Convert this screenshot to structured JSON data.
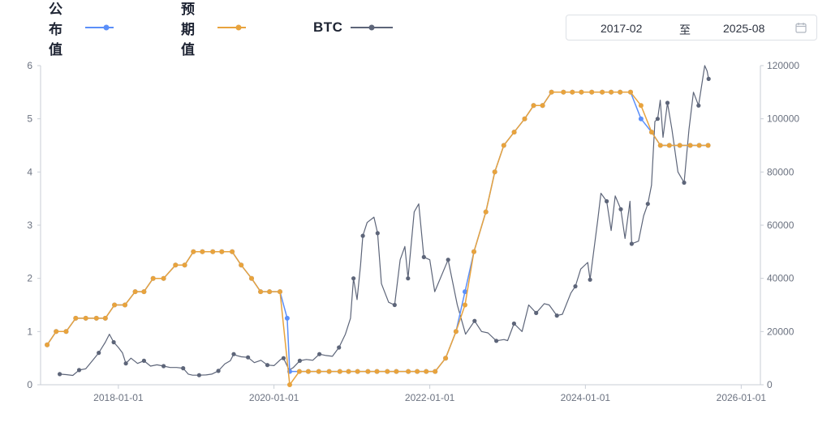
{
  "legend": {
    "published": {
      "label": "公布值",
      "color": "#5b8ff9"
    },
    "expected": {
      "label": "预期值",
      "color": "#e8a33d"
    },
    "btc": {
      "label": "BTC",
      "color": "#5d6579"
    }
  },
  "range": {
    "start": "2017-02",
    "separator": "至",
    "end": "2025-08",
    "icon": "calendar-icon"
  },
  "chart_data": {
    "type": "line",
    "x_axis": {
      "ticks": [
        "2018-01-01",
        "2020-01-01",
        "2022-01-01",
        "2024-01-01",
        "2026-01-01"
      ],
      "range": [
        "2017-01-01",
        "2026-04-01"
      ]
    },
    "y_left": {
      "ticks": [
        "0",
        "1",
        "2",
        "3",
        "4",
        "5",
        "6"
      ],
      "range": [
        0,
        6
      ]
    },
    "y_right": {
      "ticks": [
        "0",
        "20000",
        "40000",
        "60000",
        "80000",
        "100000",
        "120000"
      ],
      "range": [
        0,
        120000
      ]
    },
    "grid": false,
    "legend_position": "top-left",
    "series": [
      {
        "name": "公布值",
        "axis": "left",
        "points": [
          [
            "2017-02-01",
            0.75
          ],
          [
            "2017-03-15",
            1.0
          ],
          [
            "2017-05-01",
            1.0
          ],
          [
            "2017-06-15",
            1.25
          ],
          [
            "2017-08-01",
            1.25
          ],
          [
            "2017-09-20",
            1.25
          ],
          [
            "2017-11-01",
            1.25
          ],
          [
            "2017-12-14",
            1.5
          ],
          [
            "2018-02-01",
            1.5
          ],
          [
            "2018-03-21",
            1.75
          ],
          [
            "2018-05-01",
            1.75
          ],
          [
            "2018-06-13",
            2.0
          ],
          [
            "2018-08-01",
            2.0
          ],
          [
            "2018-09-26",
            2.25
          ],
          [
            "2018-11-08",
            2.25
          ],
          [
            "2018-12-19",
            2.5
          ],
          [
            "2019-01-30",
            2.5
          ],
          [
            "2019-03-20",
            2.5
          ],
          [
            "2019-05-01",
            2.5
          ],
          [
            "2019-06-19",
            2.5
          ],
          [
            "2019-07-31",
            2.25
          ],
          [
            "2019-09-18",
            2.0
          ],
          [
            "2019-10-30",
            1.75
          ],
          [
            "2019-12-11",
            1.75
          ],
          [
            "2020-01-29",
            1.75
          ],
          [
            "2020-03-03",
            1.25
          ],
          [
            "2020-03-15",
            0.25
          ],
          [
            "2020-04-29",
            0.25
          ],
          [
            "2020-06-10",
            0.25
          ],
          [
            "2020-07-29",
            0.25
          ],
          [
            "2020-09-16",
            0.25
          ],
          [
            "2020-11-05",
            0.25
          ],
          [
            "2020-12-16",
            0.25
          ],
          [
            "2021-01-27",
            0.25
          ],
          [
            "2021-03-17",
            0.25
          ],
          [
            "2021-04-28",
            0.25
          ],
          [
            "2021-06-16",
            0.25
          ],
          [
            "2021-07-28",
            0.25
          ],
          [
            "2021-09-22",
            0.25
          ],
          [
            "2021-11-03",
            0.25
          ],
          [
            "2021-12-15",
            0.25
          ],
          [
            "2022-01-26",
            0.25
          ],
          [
            "2022-03-16",
            0.5
          ],
          [
            "2022-05-04",
            1.0
          ],
          [
            "2022-06-15",
            1.75
          ],
          [
            "2022-07-27",
            2.5
          ],
          [
            "2022-09-21",
            3.25
          ],
          [
            "2022-11-02",
            4.0
          ],
          [
            "2022-12-14",
            4.5
          ],
          [
            "2023-02-01",
            4.75
          ],
          [
            "2023-03-22",
            5.0
          ],
          [
            "2023-05-03",
            5.25
          ],
          [
            "2023-06-14",
            5.25
          ],
          [
            "2023-07-26",
            5.5
          ],
          [
            "2023-09-20",
            5.5
          ],
          [
            "2023-11-01",
            5.5
          ],
          [
            "2023-12-13",
            5.5
          ],
          [
            "2024-01-31",
            5.5
          ],
          [
            "2024-03-20",
            5.5
          ],
          [
            "2024-05-01",
            5.5
          ],
          [
            "2024-06-12",
            5.5
          ],
          [
            "2024-07-31",
            5.5
          ],
          [
            "2024-09-18",
            5.0
          ],
          [
            "2024-11-07",
            4.75
          ],
          [
            "2024-12-18",
            4.5
          ],
          [
            "2025-01-29",
            4.5
          ],
          [
            "2025-03-19",
            4.5
          ],
          [
            "2025-05-07",
            4.5
          ],
          [
            "2025-06-18",
            4.5
          ],
          [
            "2025-07-30",
            4.5
          ]
        ]
      },
      {
        "name": "预期值",
        "axis": "left",
        "points": [
          [
            "2017-02-01",
            0.75
          ],
          [
            "2017-03-15",
            1.0
          ],
          [
            "2017-05-01",
            1.0
          ],
          [
            "2017-06-15",
            1.25
          ],
          [
            "2017-08-01",
            1.25
          ],
          [
            "2017-09-20",
            1.25
          ],
          [
            "2017-11-01",
            1.25
          ],
          [
            "2017-12-14",
            1.5
          ],
          [
            "2018-02-01",
            1.5
          ],
          [
            "2018-03-21",
            1.75
          ],
          [
            "2018-05-01",
            1.75
          ],
          [
            "2018-06-13",
            2.0
          ],
          [
            "2018-08-01",
            2.0
          ],
          [
            "2018-09-26",
            2.25
          ],
          [
            "2018-11-08",
            2.25
          ],
          [
            "2018-12-19",
            2.5
          ],
          [
            "2019-01-30",
            2.5
          ],
          [
            "2019-03-20",
            2.5
          ],
          [
            "2019-05-01",
            2.5
          ],
          [
            "2019-06-19",
            2.5
          ],
          [
            "2019-07-31",
            2.25
          ],
          [
            "2019-09-18",
            2.0
          ],
          [
            "2019-10-30",
            1.75
          ],
          [
            "2019-12-11",
            1.75
          ],
          [
            "2020-01-29",
            1.75
          ],
          [
            "2020-03-15",
            0.0
          ],
          [
            "2020-04-29",
            0.25
          ],
          [
            "2020-06-10",
            0.25
          ],
          [
            "2020-07-29",
            0.25
          ],
          [
            "2020-09-16",
            0.25
          ],
          [
            "2020-11-05",
            0.25
          ],
          [
            "2020-12-16",
            0.25
          ],
          [
            "2021-01-27",
            0.25
          ],
          [
            "2021-03-17",
            0.25
          ],
          [
            "2021-04-28",
            0.25
          ],
          [
            "2021-06-16",
            0.25
          ],
          [
            "2021-07-28",
            0.25
          ],
          [
            "2021-09-22",
            0.25
          ],
          [
            "2021-11-03",
            0.25
          ],
          [
            "2021-12-15",
            0.25
          ],
          [
            "2022-01-26",
            0.25
          ],
          [
            "2022-03-16",
            0.5
          ],
          [
            "2022-05-04",
            1.0
          ],
          [
            "2022-06-15",
            1.5
          ],
          [
            "2022-07-27",
            2.5
          ],
          [
            "2022-09-21",
            3.25
          ],
          [
            "2022-11-02",
            4.0
          ],
          [
            "2022-12-14",
            4.5
          ],
          [
            "2023-02-01",
            4.75
          ],
          [
            "2023-03-22",
            5.0
          ],
          [
            "2023-05-03",
            5.25
          ],
          [
            "2023-06-14",
            5.25
          ],
          [
            "2023-07-26",
            5.5
          ],
          [
            "2023-09-20",
            5.5
          ],
          [
            "2023-11-01",
            5.5
          ],
          [
            "2023-12-13",
            5.5
          ],
          [
            "2024-01-31",
            5.5
          ],
          [
            "2024-03-20",
            5.5
          ],
          [
            "2024-05-01",
            5.5
          ],
          [
            "2024-06-12",
            5.5
          ],
          [
            "2024-07-31",
            5.5
          ],
          [
            "2024-09-18",
            5.25
          ],
          [
            "2024-11-07",
            4.75
          ],
          [
            "2024-12-18",
            4.5
          ],
          [
            "2025-01-29",
            4.5
          ],
          [
            "2025-03-19",
            4.5
          ],
          [
            "2025-05-07",
            4.5
          ],
          [
            "2025-06-18",
            4.5
          ],
          [
            "2025-07-30",
            4.5
          ]
        ]
      },
      {
        "name": "BTC",
        "axis": "right",
        "points": [
          [
            "2017-04-01",
            4000
          ],
          [
            "2017-05-01",
            3800
          ],
          [
            "2017-06-01",
            3500
          ],
          [
            "2017-07-01",
            5500
          ],
          [
            "2017-08-01",
            6000
          ],
          [
            "2017-09-01",
            9000
          ],
          [
            "2017-10-01",
            12000
          ],
          [
            "2017-11-01",
            16000
          ],
          [
            "2017-11-20",
            19000
          ],
          [
            "2017-12-10",
            16000
          ],
          [
            "2018-01-01",
            14000
          ],
          [
            "2018-01-20",
            12000
          ],
          [
            "2018-02-05",
            8000
          ],
          [
            "2018-03-01",
            10000
          ],
          [
            "2018-04-01",
            8000
          ],
          [
            "2018-05-01",
            9000
          ],
          [
            "2018-06-01",
            7000
          ],
          [
            "2018-07-01",
            7500
          ],
          [
            "2018-08-01",
            7000
          ],
          [
            "2018-09-01",
            6500
          ],
          [
            "2018-10-01",
            6500
          ],
          [
            "2018-11-01",
            6200
          ],
          [
            "2018-11-25",
            4000
          ],
          [
            "2018-12-15",
            3600
          ],
          [
            "2019-01-15",
            3600
          ],
          [
            "2019-02-15",
            3700
          ],
          [
            "2019-03-15",
            4000
          ],
          [
            "2019-04-15",
            5200
          ],
          [
            "2019-05-15",
            7800
          ],
          [
            "2019-06-10",
            9000
          ],
          [
            "2019-06-26",
            11500
          ],
          [
            "2019-07-10",
            11000
          ],
          [
            "2019-08-01",
            10500
          ],
          [
            "2019-09-01",
            10300
          ],
          [
            "2019-10-01",
            8300
          ],
          [
            "2019-11-01",
            9200
          ],
          [
            "2019-12-01",
            7400
          ],
          [
            "2020-01-01",
            7200
          ],
          [
            "2020-02-01",
            9500
          ],
          [
            "2020-02-15",
            10000
          ],
          [
            "2020-03-12",
            5500
          ],
          [
            "2020-04-01",
            6500
          ],
          [
            "2020-05-01",
            9000
          ],
          [
            "2020-06-01",
            9500
          ],
          [
            "2020-07-01",
            9200
          ],
          [
            "2020-08-01",
            11500
          ],
          [
            "2020-09-01",
            11000
          ],
          [
            "2020-10-01",
            10700
          ],
          [
            "2020-11-01",
            14000
          ],
          [
            "2020-12-01",
            19000
          ],
          [
            "2020-12-25",
            25000
          ],
          [
            "2021-01-08",
            40000
          ],
          [
            "2021-01-25",
            32000
          ],
          [
            "2021-02-10",
            45000
          ],
          [
            "2021-02-21",
            56000
          ],
          [
            "2021-03-13",
            61000
          ],
          [
            "2021-04-14",
            63000
          ],
          [
            "2021-05-01",
            57000
          ],
          [
            "2021-05-19",
            38000
          ],
          [
            "2021-06-22",
            31000
          ],
          [
            "2021-07-20",
            30000
          ],
          [
            "2021-08-15",
            47000
          ],
          [
            "2021-09-06",
            52000
          ],
          [
            "2021-09-21",
            40000
          ],
          [
            "2021-10-20",
            65000
          ],
          [
            "2021-11-10",
            68000
          ],
          [
            "2021-12-04",
            48000
          ],
          [
            "2022-01-01",
            47000
          ],
          [
            "2022-01-24",
            35000
          ],
          [
            "2022-03-28",
            47000
          ],
          [
            "2022-05-10",
            30000
          ],
          [
            "2022-06-18",
            19000
          ],
          [
            "2022-07-30",
            24000
          ],
          [
            "2022-09-01",
            20000
          ],
          [
            "2022-10-01",
            19500
          ],
          [
            "2022-11-09",
            16500
          ],
          [
            "2022-12-15",
            17000
          ],
          [
            "2023-01-01",
            16600
          ],
          [
            "2023-01-31",
            23000
          ],
          [
            "2023-03-10",
            20000
          ],
          [
            "2023-04-10",
            30000
          ],
          [
            "2023-05-15",
            27000
          ],
          [
            "2023-06-22",
            30500
          ],
          [
            "2023-07-15",
            30000
          ],
          [
            "2023-08-20",
            26000
          ],
          [
            "2023-09-15",
            26500
          ],
          [
            "2023-10-25",
            34500
          ],
          [
            "2023-11-15",
            37000
          ],
          [
            "2023-12-10",
            43500
          ],
          [
            "2024-01-12",
            46000
          ],
          [
            "2024-01-23",
            39500
          ],
          [
            "2024-02-28",
            62000
          ],
          [
            "2024-03-14",
            72000
          ],
          [
            "2024-04-10",
            69000
          ],
          [
            "2024-05-01",
            58000
          ],
          [
            "2024-05-20",
            71000
          ],
          [
            "2024-06-15",
            66000
          ],
          [
            "2024-07-05",
            55000
          ],
          [
            "2024-07-28",
            69000
          ],
          [
            "2024-08-05",
            53000
          ],
          [
            "2024-09-06",
            54000
          ],
          [
            "2024-09-30",
            63500
          ],
          [
            "2024-10-20",
            68000
          ],
          [
            "2024-11-06",
            75000
          ],
          [
            "2024-11-22",
            99000
          ],
          [
            "2024-12-05",
            100000
          ],
          [
            "2024-12-17",
            107000
          ],
          [
            "2024-12-30",
            93000
          ],
          [
            "2025-01-20",
            106000
          ],
          [
            "2025-02-10",
            96000
          ],
          [
            "2025-03-10",
            80000
          ],
          [
            "2025-04-08",
            76000
          ],
          [
            "2025-05-01",
            96000
          ],
          [
            "2025-05-22",
            110000
          ],
          [
            "2025-06-15",
            105000
          ],
          [
            "2025-07-14",
            120000
          ],
          [
            "2025-07-25",
            118000
          ],
          [
            "2025-08-01",
            115000
          ]
        ]
      }
    ]
  }
}
